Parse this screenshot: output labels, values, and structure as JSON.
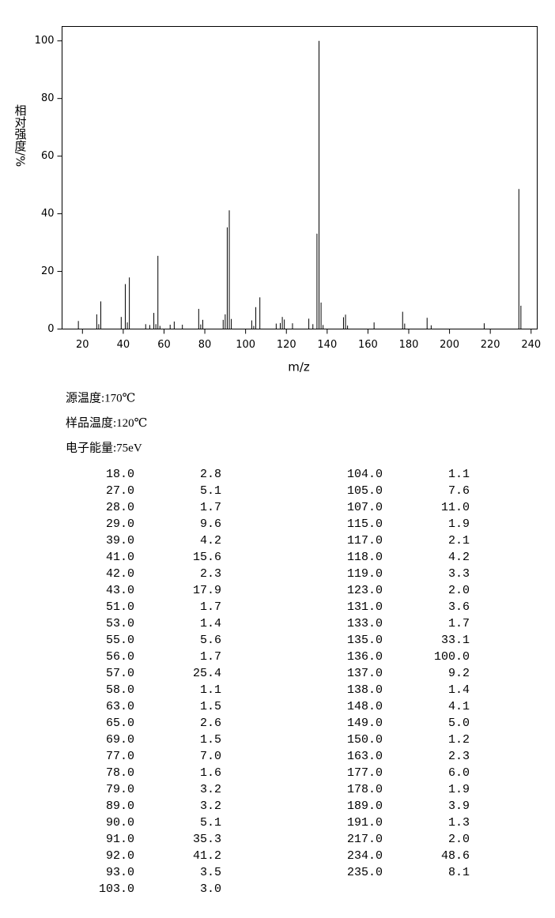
{
  "chart_data": {
    "type": "bar",
    "x_label": "m/z",
    "y_label": "相对强度/%",
    "x": [
      18,
      27,
      28,
      29,
      39,
      41,
      42,
      43,
      51,
      53,
      55,
      56,
      57,
      58,
      63,
      65,
      69,
      77,
      78,
      79,
      89,
      90,
      91,
      92,
      93,
      103,
      104,
      105,
      107,
      115,
      117,
      118,
      119,
      123,
      131,
      133,
      135,
      136,
      137,
      138,
      148,
      149,
      150,
      163,
      177,
      178,
      189,
      191,
      217,
      234,
      235
    ],
    "values": [
      2.8,
      5.1,
      1.7,
      9.6,
      4.2,
      15.6,
      2.3,
      17.9,
      1.7,
      1.4,
      5.6,
      1.7,
      25.4,
      1.1,
      1.5,
      2.6,
      1.5,
      7.0,
      1.6,
      3.2,
      3.2,
      5.1,
      35.3,
      41.2,
      3.5,
      3.0,
      1.1,
      7.6,
      11.0,
      1.9,
      2.1,
      4.2,
      3.3,
      2.0,
      3.6,
      1.7,
      33.1,
      100.0,
      9.2,
      1.4,
      4.1,
      5.0,
      1.2,
      2.3,
      6.0,
      1.9,
      3.9,
      1.3,
      2.0,
      48.6,
      8.1
    ],
    "color": "#000000",
    "xlim": [
      10,
      243
    ],
    "xticks": [
      20,
      40,
      60,
      80,
      100,
      120,
      140,
      160,
      180,
      200,
      220,
      240
    ],
    "ylim": [
      0,
      105
    ],
    "yticks": [
      0,
      20,
      40,
      60,
      80,
      100
    ]
  },
  "conditions": [
    "源温度:170℃",
    "样品温度:120℃",
    "电子能量:75eV"
  ],
  "table": {
    "rows": [
      [
        "18.0",
        "2.8"
      ],
      [
        "27.0",
        "5.1"
      ],
      [
        "28.0",
        "1.7"
      ],
      [
        "29.0",
        "9.6"
      ],
      [
        "39.0",
        "4.2"
      ],
      [
        "41.0",
        "15.6"
      ],
      [
        "42.0",
        "2.3"
      ],
      [
        "43.0",
        "17.9"
      ],
      [
        "51.0",
        "1.7"
      ],
      [
        "53.0",
        "1.4"
      ],
      [
        "55.0",
        "5.6"
      ],
      [
        "56.0",
        "1.7"
      ],
      [
        "57.0",
        "25.4"
      ],
      [
        "58.0",
        "1.1"
      ],
      [
        "63.0",
        "1.5"
      ],
      [
        "65.0",
        "2.6"
      ],
      [
        "69.0",
        "1.5"
      ],
      [
        "77.0",
        "7.0"
      ],
      [
        "78.0",
        "1.6"
      ],
      [
        "79.0",
        "3.2"
      ],
      [
        "89.0",
        "3.2"
      ],
      [
        "90.0",
        "5.1"
      ],
      [
        "91.0",
        "35.3"
      ],
      [
        "92.0",
        "41.2"
      ],
      [
        "93.0",
        "3.5"
      ],
      [
        "103.0",
        "3.0"
      ],
      [
        "104.0",
        "1.1"
      ],
      [
        "105.0",
        "7.6"
      ],
      [
        "107.0",
        "11.0"
      ],
      [
        "115.0",
        "1.9"
      ],
      [
        "117.0",
        "2.1"
      ],
      [
        "118.0",
        "4.2"
      ],
      [
        "119.0",
        "3.3"
      ],
      [
        "123.0",
        "2.0"
      ],
      [
        "131.0",
        "3.6"
      ],
      [
        "133.0",
        "1.7"
      ],
      [
        "135.0",
        "33.1"
      ],
      [
        "136.0",
        "100.0"
      ],
      [
        "137.0",
        "9.2"
      ],
      [
        "138.0",
        "1.4"
      ],
      [
        "148.0",
        "4.1"
      ],
      [
        "149.0",
        "5.0"
      ],
      [
        "150.0",
        "1.2"
      ],
      [
        "163.0",
        "2.3"
      ],
      [
        "177.0",
        "6.0"
      ],
      [
        "178.0",
        "1.9"
      ],
      [
        "189.0",
        "3.9"
      ],
      [
        "191.0",
        "1.3"
      ],
      [
        "217.0",
        "2.0"
      ],
      [
        "234.0",
        "48.6"
      ],
      [
        "235.0",
        "8.1"
      ]
    ]
  }
}
